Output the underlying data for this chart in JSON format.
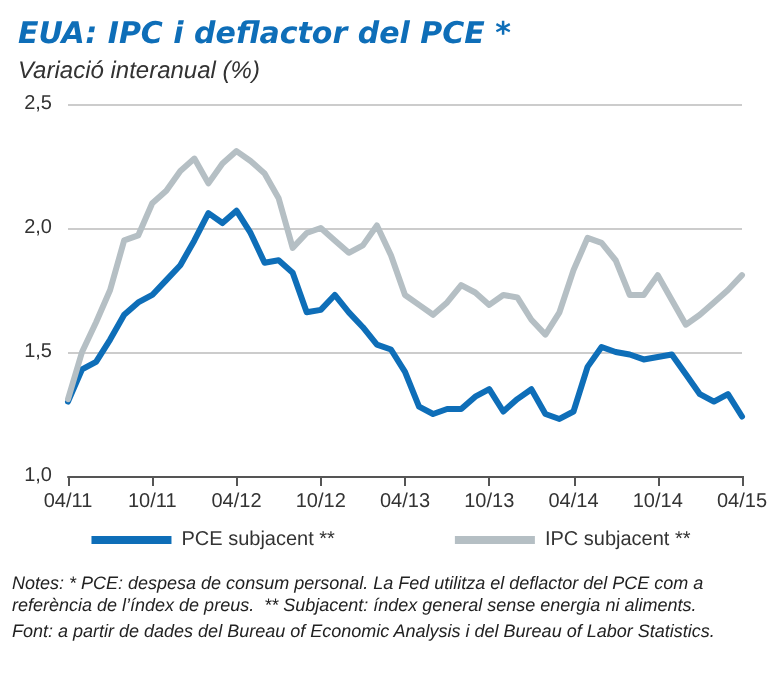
{
  "chart_data": {
    "type": "line",
    "title": "EUA: IPC i deflactor del PCE *",
    "subtitle": "Variació interanual (%)",
    "categories": [
      "04/11",
      null,
      null,
      null,
      null,
      null,
      "10/11",
      null,
      null,
      null,
      null,
      null,
      "04/12",
      null,
      null,
      null,
      null,
      null,
      "10/12",
      null,
      null,
      null,
      null,
      null,
      "04/13",
      null,
      null,
      null,
      null,
      null,
      "10/13",
      null,
      null,
      null,
      null,
      null,
      "04/14",
      null,
      null,
      null,
      null,
      null,
      "10/14",
      null,
      null,
      null,
      null,
      null,
      "04/15"
    ],
    "series": [
      {
        "name": "PCE subjacent **",
        "color": "#0e6eb8",
        "values": [
          1.3,
          1.43,
          1.46,
          1.55,
          1.65,
          1.7,
          1.73,
          1.79,
          1.85,
          1.95,
          2.06,
          2.02,
          2.07,
          1.98,
          1.86,
          1.87,
          1.82,
          1.66,
          1.67,
          1.73,
          1.66,
          1.6,
          1.53,
          1.51,
          1.42,
          1.28,
          1.25,
          1.27,
          1.27,
          1.32,
          1.35,
          1.26,
          1.31,
          1.35,
          1.25,
          1.23,
          1.26,
          1.44,
          1.52,
          1.5,
          1.49,
          1.47,
          1.48,
          1.49,
          1.41,
          1.33,
          1.3,
          1.33,
          1.24
        ]
      },
      {
        "name": "IPC subjacent **",
        "color": "#b5bfc4",
        "values": [
          1.31,
          1.5,
          1.62,
          1.75,
          1.95,
          1.97,
          2.1,
          2.15,
          2.23,
          2.28,
          2.18,
          2.26,
          2.31,
          2.27,
          2.22,
          2.12,
          1.92,
          1.98,
          2.0,
          1.95,
          1.9,
          1.93,
          2.01,
          1.89,
          1.73,
          1.69,
          1.65,
          1.7,
          1.77,
          1.74,
          1.69,
          1.73,
          1.72,
          1.63,
          1.57,
          1.66,
          1.83,
          1.96,
          1.94,
          1.87,
          1.73,
          1.73,
          1.81,
          1.71,
          1.61,
          1.65,
          1.7,
          1.75,
          1.81
        ]
      }
    ],
    "ylim": [
      1.0,
      2.5
    ],
    "yticks": [
      {
        "value": 1.0,
        "label": "1,0"
      },
      {
        "value": 1.5,
        "label": "1,5"
      },
      {
        "value": 2.0,
        "label": "2,0"
      },
      {
        "value": 2.5,
        "label": "2,5"
      }
    ],
    "grid": "y",
    "legend": "bottom",
    "marker": "none",
    "line_style": "solid",
    "annotations": [
      "Notes: * PCE: despesa de consum personal. La Fed utilitza el deflactor del PCE com a referència de l’índex de preus.  ** Subjacent: índex general sense energia ni aliments.",
      "Font: a partir de dades del Bureau of Economic Analysis i del Bureau of Labor Statistics."
    ]
  }
}
